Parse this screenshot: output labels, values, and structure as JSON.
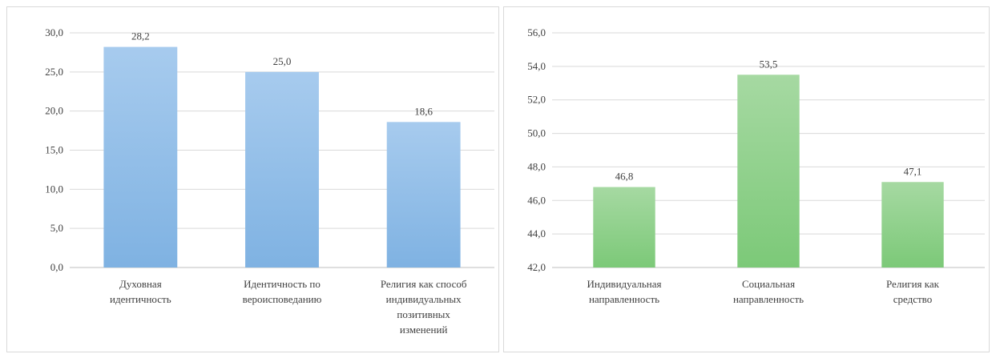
{
  "chart_data": [
    {
      "type": "bar",
      "categories": [
        [
          "Духовная",
          "идентичность"
        ],
        [
          "Идентичность по",
          "вероисповеданию"
        ],
        [
          "Религия как способ",
          "индивидуальных",
          "позитивных",
          "изменений"
        ]
      ],
      "values": [
        28.2,
        25.0,
        18.6
      ],
      "value_labels": [
        "28,2",
        "25,0",
        "18,6"
      ],
      "ylim": [
        0,
        30
      ],
      "y_ticks": [
        "0,0",
        "5,0",
        "10,0",
        "15,0",
        "20,0",
        "25,0",
        "30,0"
      ],
      "grid": true,
      "color": "#8dbbe6",
      "color_top": "#a7cbee",
      "color_bottom": "#7fb2e2"
    },
    {
      "type": "bar",
      "categories": [
        [
          "Индивидуальная",
          "направленность"
        ],
        [
          "Социальная",
          "направленность"
        ],
        [
          "Религия как",
          "средство"
        ]
      ],
      "values": [
        46.8,
        53.5,
        47.1
      ],
      "value_labels": [
        "46,8",
        "53,5",
        "47,1"
      ],
      "ylim": [
        42,
        56
      ],
      "y_ticks": [
        "42,0",
        "44,0",
        "46,0",
        "48,0",
        "50,0",
        "52,0",
        "54,0",
        "56,0"
      ],
      "grid": true,
      "color": "#8ed08a",
      "color_top": "#a6d9a2",
      "color_bottom": "#7cc978"
    }
  ]
}
